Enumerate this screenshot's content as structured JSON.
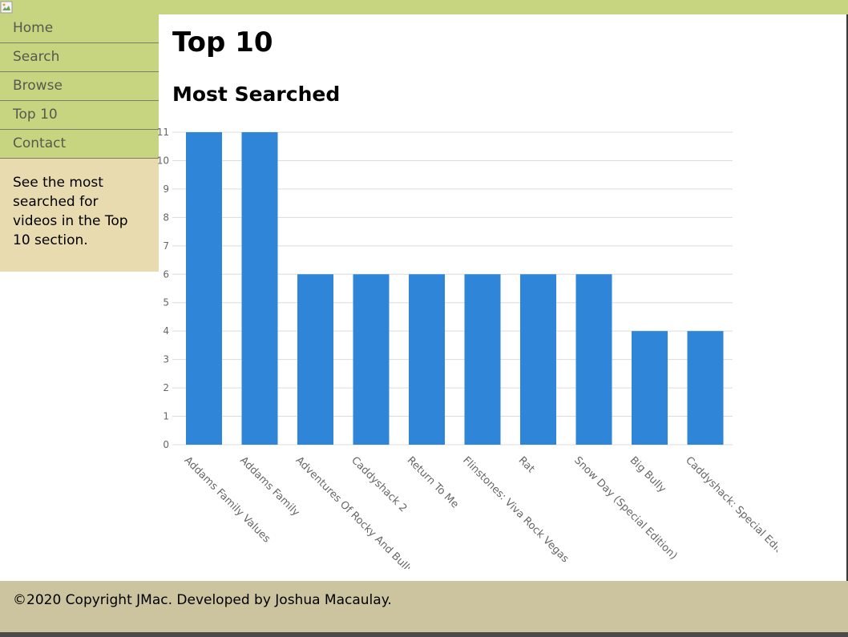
{
  "page": {
    "title": "Top 10",
    "subtitle": "Most Searched"
  },
  "nav": {
    "items": [
      {
        "label": "Home"
      },
      {
        "label": "Search"
      },
      {
        "label": "Browse"
      },
      {
        "label": "Top 10"
      },
      {
        "label": "Contact"
      }
    ]
  },
  "sidebar": {
    "note": "See the most searched for videos in the Top 10 section."
  },
  "footer": {
    "text": "©2020 Copyright JMac. Developed by Joshua Macaulay."
  },
  "colors": {
    "nav_bg": "#c8d580",
    "note_bg": "#e9dbb0",
    "footer_bg": "#cbc49f",
    "bar": "#2f86d9"
  },
  "chart_data": {
    "type": "bar",
    "categories": [
      "Addams Family Values",
      "Addams Family",
      "Adventures Of Rocky And Bullwinkle",
      "Caddyshack 2",
      "Return To Me",
      "Flinstones: Viva Rock Vegas",
      "Rat",
      "Snow Day (Special Edition)",
      "Big Bully",
      "Caddyshack: Special Edition"
    ],
    "values": [
      11,
      11,
      6,
      6,
      6,
      6,
      6,
      6,
      4,
      4
    ],
    "yticks": [
      "0",
      "1",
      "2",
      "3",
      "4",
      "5",
      "6",
      "7",
      "8",
      "9",
      "10",
      "11"
    ],
    "ylim": [
      0,
      11
    ],
    "grid": true,
    "title": "",
    "xlabel": "",
    "ylabel": ""
  }
}
